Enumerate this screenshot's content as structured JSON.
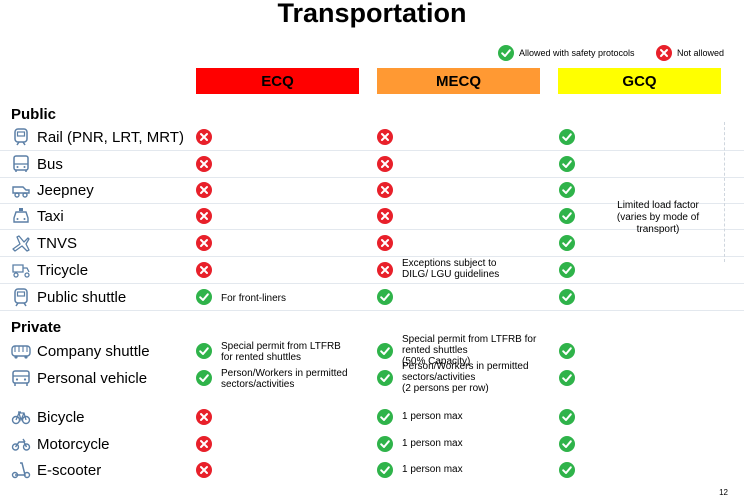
{
  "title": "Transportation",
  "legend": {
    "allowed": "Allowed with safety protocols",
    "not_allowed": "Not allowed"
  },
  "columns": [
    {
      "label": "ECQ",
      "color": "#ff0000"
    },
    {
      "label": "MECQ",
      "color": "#ff9933"
    },
    {
      "label": "GCQ",
      "color": "#ffff00"
    }
  ],
  "sections": {
    "public": "Public",
    "private": "Private"
  },
  "rows": [
    {
      "label": "Rail (PNR, LRT, MRT)",
      "icon": "train-icon",
      "ecq": "no",
      "mecq": "no",
      "gcq": "yes",
      "ecq_note": "",
      "mecq_note": ""
    },
    {
      "label": "Bus",
      "icon": "bus-icon",
      "ecq": "no",
      "mecq": "no",
      "gcq": "yes",
      "ecq_note": "",
      "mecq_note": ""
    },
    {
      "label": "Jeepney",
      "icon": "jeepney-icon",
      "ecq": "no",
      "mecq": "no",
      "gcq": "yes",
      "ecq_note": "",
      "mecq_note": ""
    },
    {
      "label": "Taxi",
      "icon": "taxi-icon",
      "ecq": "no",
      "mecq": "no",
      "gcq": "yes",
      "ecq_note": "",
      "mecq_note": ""
    },
    {
      "label": "TNVS",
      "icon": "plane-icon",
      "ecq": "no",
      "mecq": "no",
      "gcq": "yes",
      "ecq_note": "",
      "mecq_note": ""
    },
    {
      "label": "Tricycle",
      "icon": "tricycle-icon",
      "ecq": "no",
      "mecq": "no",
      "gcq": "yes",
      "ecq_note": "",
      "mecq_note": "Exceptions subject to\nDILG/ LGU guidelines"
    },
    {
      "label": "Public shuttle",
      "icon": "shuttle-icon",
      "ecq": "yes",
      "mecq": "yes",
      "gcq": "yes",
      "ecq_note": "For front-liners",
      "mecq_note": ""
    },
    {
      "label": "Company shuttle",
      "icon": "company-bus-icon",
      "ecq": "yes",
      "mecq": "yes",
      "gcq": "yes",
      "ecq_note": "Special permit from LTFRB\nfor rented shuttles",
      "mecq_note": "Special permit from LTFRB for\nrented shuttles\n(50% Capacity)"
    },
    {
      "label": "Personal vehicle",
      "icon": "car-icon",
      "ecq": "yes",
      "mecq": "yes",
      "gcq": "yes",
      "ecq_note": "Person/Workers in permitted\nsectors/activities",
      "mecq_note": "Person/Workers in permitted\nsectors/activities\n(2 persons per row)"
    },
    {
      "label": "Bicycle",
      "icon": "bicycle-icon",
      "ecq": "no",
      "mecq": "yes",
      "gcq": "yes",
      "ecq_note": "",
      "mecq_note": "1 person max"
    },
    {
      "label": "Motorcycle",
      "icon": "motorcycle-icon",
      "ecq": "no",
      "mecq": "yes",
      "gcq": "yes",
      "ecq_note": "",
      "mecq_note": "1 person max"
    },
    {
      "label": "E-scooter",
      "icon": "scooter-icon",
      "ecq": "no",
      "mecq": "yes",
      "gcq": "yes",
      "ecq_note": "",
      "mecq_note": "1 person max"
    }
  ],
  "gcq_note": "Limited load factor (varies by mode of transport)",
  "page_number": "12",
  "colors": {
    "allowed": "#2fb34a",
    "not_allowed": "#e8202a",
    "icon": "#5b7fa6"
  }
}
